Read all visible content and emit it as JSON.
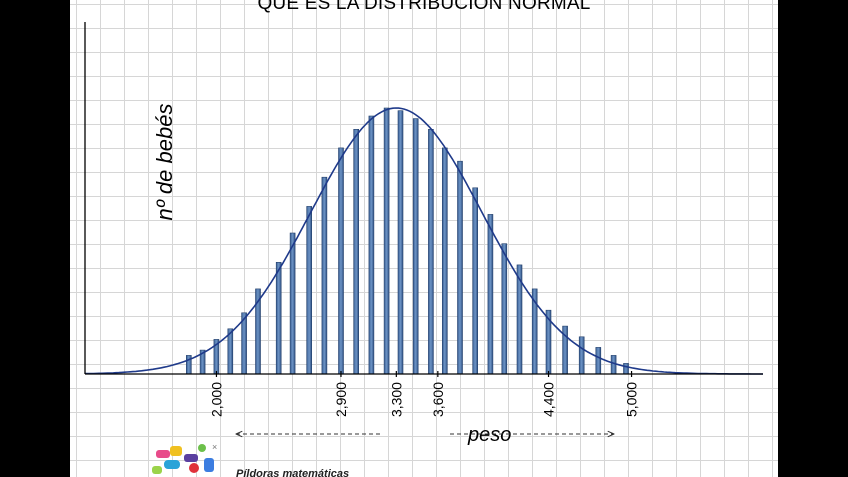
{
  "title": "QUE ES LA DISTRIBUCIÓN NORMAL",
  "logo_text": "Píldoras matemáticas",
  "chart_data": {
    "type": "bar",
    "title": "QUE ES LA DISTRIBUCIÓN NORMAL",
    "xlabel": "peso",
    "ylabel": "nº de bebés",
    "xlim": [
      1050,
      5950
    ],
    "x_ticks": [
      "2,000",
      "2,900",
      "3,300",
      "3,600",
      "4,400",
      "5,000"
    ],
    "x_tick_values": [
      2000,
      2900,
      3300,
      3600,
      4400,
      5000
    ],
    "ylim": [
      0,
      100
    ],
    "grid": true,
    "curve": {
      "type": "normal",
      "mean": 3300,
      "sd": 620,
      "peak": 100
    },
    "series": [
      {
        "x": [
          1800,
          1900,
          2000,
          2100,
          2200,
          2300,
          2450,
          2550,
          2670,
          2780,
          2900,
          3010,
          3120,
          3230,
          3330,
          3440,
          3550,
          3650,
          3760,
          3870,
          3980,
          4080,
          4190,
          4300,
          4400,
          4520,
          4640,
          4760,
          4870,
          4960
        ],
        "values": [
          7,
          9,
          13,
          17,
          23,
          32,
          42,
          53,
          63,
          74,
          85,
          92,
          97,
          100,
          99,
          96,
          92,
          85,
          80,
          70,
          60,
          49,
          41,
          32,
          24,
          18,
          14,
          10,
          7,
          4
        ]
      }
    ]
  }
}
